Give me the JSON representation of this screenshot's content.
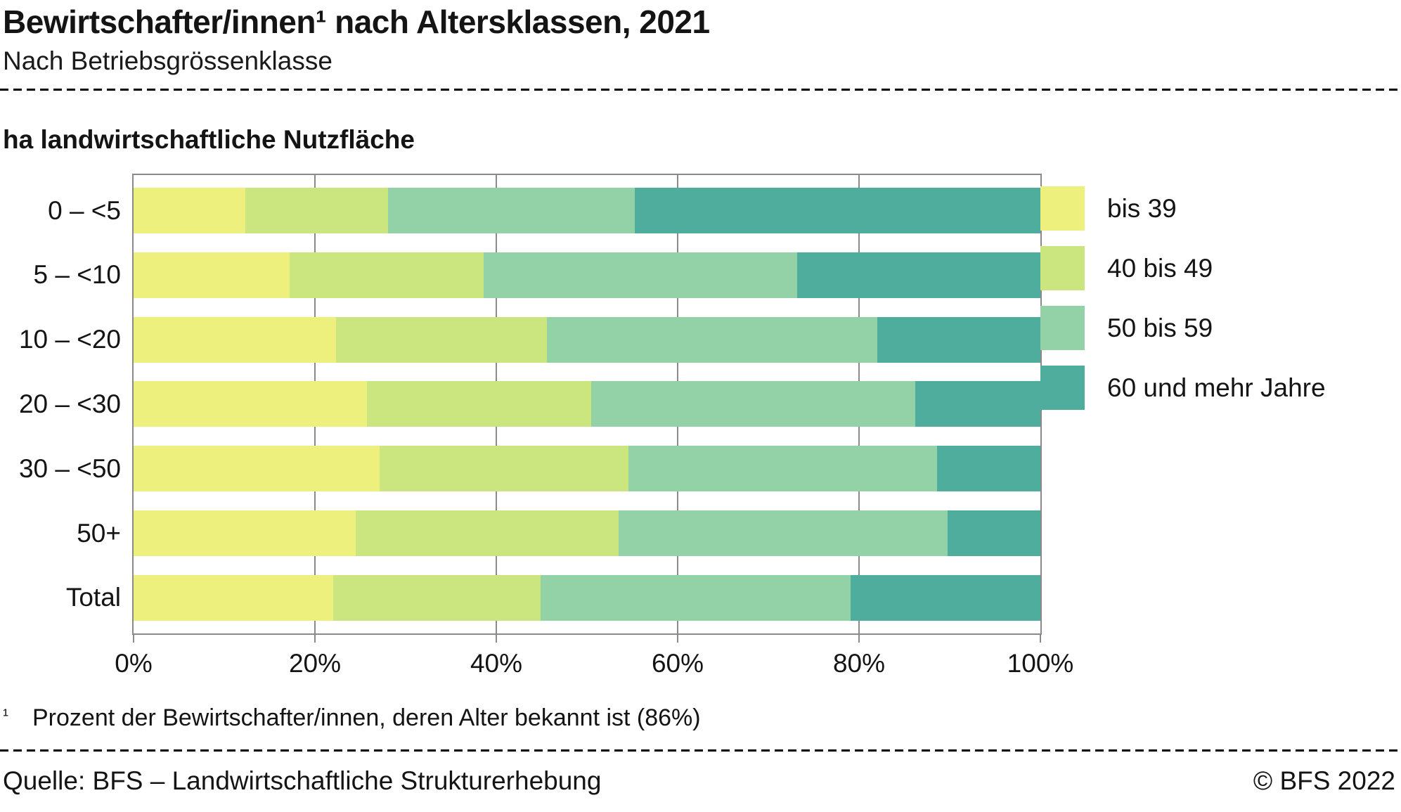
{
  "header": {
    "title": "Bewirtschafter/innen¹ nach Altersklassen, 2021",
    "subtitle": "Nach Betriebsgrössenklasse"
  },
  "chart_data": {
    "type": "bar",
    "orientation": "horizontal",
    "stacked": true,
    "title": "ha landwirtschaftliche Nutzfläche",
    "categories": [
      "0 – <5",
      "5 – <10",
      "10 – <20",
      "20 – <30",
      "30 – <50",
      "50+",
      "Total"
    ],
    "series": [
      {
        "name": "bis 39",
        "color": "#edf07c",
        "values": [
          12.3,
          17.2,
          22.3,
          25.7,
          27.1,
          24.5,
          22.0
        ]
      },
      {
        "name": "40 bis 49",
        "color": "#cbe67f",
        "values": [
          15.8,
          21.4,
          23.3,
          24.8,
          27.5,
          29.0,
          22.9
        ]
      },
      {
        "name": "50 bis 59",
        "color": "#93d1a6",
        "values": [
          27.2,
          34.6,
          36.4,
          35.7,
          34.0,
          36.3,
          34.2
        ]
      },
      {
        "name": "60 und mehr Jahre",
        "color": "#4fad9e",
        "values": [
          44.7,
          26.8,
          18.0,
          13.8,
          11.4,
          10.2,
          20.9
        ]
      }
    ],
    "x_axis": {
      "ticks": [
        "0%",
        "20%",
        "40%",
        "60%",
        "80%",
        "100%"
      ],
      "range": [
        0,
        100
      ],
      "unit": "%"
    },
    "grid": true,
    "grid_color": "#8a8a8a",
    "legend_position": "right"
  },
  "footnote": {
    "marker": "¹",
    "text": "Prozent der Bewirtschafter/innen, deren Alter bekannt ist (86%)"
  },
  "footer": {
    "source": "Quelle: BFS – Landwirtschaftliche Strukturerhebung",
    "copyright": "© BFS 2022"
  }
}
